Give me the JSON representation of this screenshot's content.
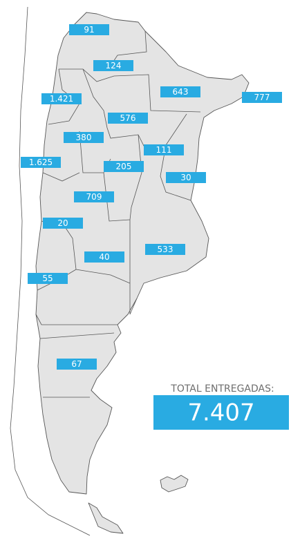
{
  "map": {
    "labels": [
      "91",
      "124",
      "1.421",
      "643",
      "777",
      "576",
      "380",
      "111",
      "1.625",
      "205",
      "30",
      "709",
      "20",
      "533",
      "40",
      "55",
      "67"
    ]
  },
  "total": {
    "title": "TOTAL ENTREGADAS:",
    "value": "7.407"
  }
}
